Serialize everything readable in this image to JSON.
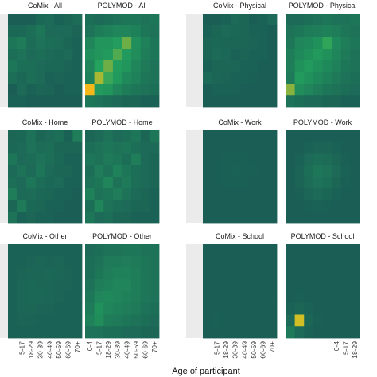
{
  "figure": {
    "xlabel": "Age of participant"
  },
  "chart_data": {
    "type": "heatmap",
    "xlabel": "Age of participant",
    "age_groups": [
      "0-4",
      "5-17",
      "18-29",
      "30-39",
      "40-49",
      "50-59",
      "60-69",
      "70+"
    ],
    "color_scale": {
      "low": "#1b5e55",
      "mid": "#23a35e",
      "high": "#e8c31f",
      "peak": "#f5b81b"
    },
    "panels": [
      {
        "title": "CoMix - All",
        "x_ticks": [],
        "values": [
          [
            0.1,
            0.1,
            0.06,
            0.15,
            0.16,
            0.12,
            0.14,
            0.17
          ],
          [
            0.15,
            0.15,
            0.18,
            0.22,
            0.16,
            0.16,
            0.16,
            0.13
          ],
          [
            0.22,
            0.25,
            0.17,
            0.2,
            0.18,
            0.17,
            0.14,
            0.12
          ],
          [
            0.18,
            0.2,
            0.16,
            0.18,
            0.16,
            0.15,
            0.16,
            0.12
          ],
          [
            0.22,
            0.18,
            0.18,
            0.16,
            0.15,
            0.15,
            0.13,
            0.12
          ],
          [
            0.18,
            0.15,
            0.18,
            0.16,
            0.12,
            0.13,
            0.12,
            0.12
          ],
          [
            0.1,
            0.16,
            0.12,
            0.14,
            0.13,
            0.1,
            0.12,
            0.12
          ],
          [
            0.12,
            0.12,
            0.1,
            0.1,
            0.08,
            0.08,
            0.08,
            0.1
          ]
        ]
      },
      {
        "title": "POLYMOD - All",
        "x_ticks": [],
        "values": [
          [
            0.18,
            0.16,
            0.18,
            0.2,
            0.22,
            0.22,
            0.2,
            0.22
          ],
          [
            0.2,
            0.25,
            0.28,
            0.3,
            0.3,
            0.28,
            0.22,
            0.2
          ],
          [
            0.3,
            0.38,
            0.38,
            0.42,
            0.62,
            0.35,
            0.28,
            0.22
          ],
          [
            0.35,
            0.38,
            0.4,
            0.55,
            0.4,
            0.34,
            0.26,
            0.22
          ],
          [
            0.3,
            0.45,
            0.62,
            0.42,
            0.38,
            0.3,
            0.24,
            0.2
          ],
          [
            0.28,
            0.75,
            0.5,
            0.4,
            0.32,
            0.28,
            0.22,
            0.2
          ],
          [
            1.0,
            0.4,
            0.38,
            0.3,
            0.25,
            0.22,
            0.2,
            0.18
          ],
          [
            0.22,
            0.2,
            0.18,
            0.16,
            0.14,
            0.14,
            0.12,
            0.12
          ]
        ]
      },
      {
        "title": "CoMix - Physical",
        "x_ticks": [],
        "values": [
          [
            0.1,
            0.1,
            0.12,
            0.16,
            0.14,
            0.1,
            0.12,
            0.16
          ],
          [
            0.12,
            0.14,
            0.16,
            0.15,
            0.14,
            0.12,
            0.12,
            0.1
          ],
          [
            0.14,
            0.15,
            0.14,
            0.14,
            0.14,
            0.13,
            0.12,
            0.1
          ],
          [
            0.14,
            0.16,
            0.15,
            0.12,
            0.13,
            0.12,
            0.12,
            0.1
          ],
          [
            0.12,
            0.14,
            0.14,
            0.14,
            0.12,
            0.12,
            0.1,
            0.1
          ],
          [
            0.16,
            0.14,
            0.13,
            0.12,
            0.12,
            0.11,
            0.1,
            0.1
          ],
          [
            0.1,
            0.12,
            0.12,
            0.12,
            0.1,
            0.1,
            0.1,
            0.1
          ],
          [
            0.1,
            0.1,
            0.1,
            0.1,
            0.1,
            0.1,
            0.08,
            0.1
          ]
        ]
      },
      {
        "title": "POLYMOD - Physical",
        "x_ticks": [],
        "values": [
          [
            0.16,
            0.16,
            0.18,
            0.2,
            0.22,
            0.2,
            0.2,
            0.22
          ],
          [
            0.2,
            0.22,
            0.25,
            0.26,
            0.28,
            0.26,
            0.22,
            0.2
          ],
          [
            0.22,
            0.3,
            0.32,
            0.36,
            0.48,
            0.32,
            0.26,
            0.22
          ],
          [
            0.26,
            0.32,
            0.36,
            0.4,
            0.36,
            0.3,
            0.24,
            0.2
          ],
          [
            0.26,
            0.36,
            0.4,
            0.36,
            0.32,
            0.28,
            0.22,
            0.2
          ],
          [
            0.24,
            0.4,
            0.36,
            0.32,
            0.28,
            0.24,
            0.2,
            0.18
          ],
          [
            0.68,
            0.34,
            0.3,
            0.26,
            0.22,
            0.2,
            0.18,
            0.16
          ],
          [
            0.2,
            0.18,
            0.16,
            0.16,
            0.14,
            0.14,
            0.12,
            0.12
          ]
        ]
      },
      {
        "title": "CoMix - Home",
        "x_ticks": [],
        "values": [
          [
            0.14,
            0.15,
            0.2,
            0.14,
            0.16,
            0.18,
            0.12,
            0.26
          ],
          [
            0.15,
            0.16,
            0.2,
            0.17,
            0.18,
            0.14,
            0.14,
            0.14
          ],
          [
            0.22,
            0.16,
            0.17,
            0.2,
            0.18,
            0.15,
            0.12,
            0.12
          ],
          [
            0.16,
            0.2,
            0.16,
            0.22,
            0.16,
            0.14,
            0.14,
            0.12
          ],
          [
            0.18,
            0.16,
            0.22,
            0.17,
            0.15,
            0.16,
            0.12,
            0.12
          ],
          [
            0.26,
            0.16,
            0.17,
            0.15,
            0.14,
            0.12,
            0.12,
            0.1
          ],
          [
            0.14,
            0.24,
            0.15,
            0.14,
            0.12,
            0.12,
            0.1,
            0.1
          ],
          [
            0.2,
            0.12,
            0.14,
            0.12,
            0.12,
            0.1,
            0.1,
            0.1
          ]
        ]
      },
      {
        "title": "POLYMOD - Home",
        "x_ticks": [],
        "values": [
          [
            0.14,
            0.16,
            0.2,
            0.16,
            0.18,
            0.22,
            0.14,
            0.22
          ],
          [
            0.18,
            0.2,
            0.22,
            0.2,
            0.22,
            0.18,
            0.16,
            0.16
          ],
          [
            0.22,
            0.2,
            0.24,
            0.22,
            0.18,
            0.26,
            0.16,
            0.14
          ],
          [
            0.18,
            0.26,
            0.2,
            0.28,
            0.22,
            0.18,
            0.16,
            0.14
          ],
          [
            0.2,
            0.22,
            0.3,
            0.2,
            0.24,
            0.18,
            0.16,
            0.14
          ],
          [
            0.28,
            0.2,
            0.22,
            0.26,
            0.2,
            0.16,
            0.14,
            0.12
          ],
          [
            0.18,
            0.3,
            0.2,
            0.18,
            0.16,
            0.14,
            0.14,
            0.12
          ],
          [
            0.22,
            0.16,
            0.18,
            0.14,
            0.14,
            0.12,
            0.12,
            0.12
          ]
        ]
      },
      {
        "title": "CoMix - Work",
        "x_ticks": [],
        "values": [
          [
            0.1,
            0.1,
            0.1,
            0.1,
            0.1,
            0.1,
            0.1,
            0.1
          ],
          [
            0.1,
            0.1,
            0.1,
            0.1,
            0.1,
            0.1,
            0.1,
            0.1
          ],
          [
            0.1,
            0.1,
            0.11,
            0.11,
            0.11,
            0.1,
            0.1,
            0.1
          ],
          [
            0.1,
            0.1,
            0.11,
            0.12,
            0.11,
            0.11,
            0.1,
            0.1
          ],
          [
            0.1,
            0.1,
            0.11,
            0.11,
            0.11,
            0.1,
            0.1,
            0.1
          ],
          [
            0.1,
            0.1,
            0.1,
            0.1,
            0.1,
            0.1,
            0.1,
            0.1
          ],
          [
            0.1,
            0.1,
            0.1,
            0.1,
            0.1,
            0.1,
            0.1,
            0.1
          ],
          [
            0.1,
            0.1,
            0.1,
            0.1,
            0.1,
            0.1,
            0.1,
            0.1
          ]
        ]
      },
      {
        "title": "POLYMOD - Work",
        "x_ticks": [],
        "values": [
          [
            0.1,
            0.1,
            0.1,
            0.1,
            0.1,
            0.1,
            0.1,
            0.1
          ],
          [
            0.1,
            0.1,
            0.12,
            0.13,
            0.13,
            0.12,
            0.1,
            0.1
          ],
          [
            0.1,
            0.12,
            0.16,
            0.18,
            0.17,
            0.14,
            0.11,
            0.1
          ],
          [
            0.1,
            0.13,
            0.18,
            0.22,
            0.2,
            0.16,
            0.12,
            0.1
          ],
          [
            0.1,
            0.13,
            0.17,
            0.2,
            0.18,
            0.14,
            0.11,
            0.1
          ],
          [
            0.1,
            0.11,
            0.14,
            0.16,
            0.14,
            0.12,
            0.1,
            0.1
          ],
          [
            0.1,
            0.1,
            0.11,
            0.12,
            0.11,
            0.1,
            0.1,
            0.1
          ],
          [
            0.1,
            0.1,
            0.1,
            0.1,
            0.1,
            0.1,
            0.1,
            0.1
          ]
        ]
      },
      {
        "title": "CoMix - Other",
        "x_ticks": [
          "5-17",
          "18-29",
          "30-39",
          "40-49",
          "50-59",
          "60-69",
          "70+"
        ],
        "values": [
          [
            0.12,
            0.12,
            0.12,
            0.12,
            0.12,
            0.12,
            0.12,
            0.12
          ],
          [
            0.12,
            0.12,
            0.13,
            0.14,
            0.13,
            0.14,
            0.12,
            0.12
          ],
          [
            0.12,
            0.13,
            0.14,
            0.14,
            0.15,
            0.14,
            0.13,
            0.12
          ],
          [
            0.12,
            0.14,
            0.15,
            0.14,
            0.14,
            0.13,
            0.13,
            0.12
          ],
          [
            0.12,
            0.14,
            0.15,
            0.15,
            0.14,
            0.13,
            0.12,
            0.12
          ],
          [
            0.12,
            0.14,
            0.14,
            0.13,
            0.13,
            0.12,
            0.12,
            0.12
          ],
          [
            0.12,
            0.13,
            0.13,
            0.12,
            0.12,
            0.12,
            0.12,
            0.12
          ],
          [
            0.12,
            0.12,
            0.12,
            0.12,
            0.12,
            0.12,
            0.12,
            0.12
          ]
        ]
      },
      {
        "title": "POLYMOD - Other",
        "x_ticks": [
          "0-4",
          "5-17",
          "18-29",
          "30-39",
          "40-49",
          "50-59",
          "60-69",
          "70+"
        ],
        "values": [
          [
            0.16,
            0.18,
            0.2,
            0.2,
            0.22,
            0.22,
            0.2,
            0.2
          ],
          [
            0.18,
            0.2,
            0.24,
            0.24,
            0.26,
            0.24,
            0.22,
            0.2
          ],
          [
            0.18,
            0.22,
            0.26,
            0.28,
            0.28,
            0.26,
            0.22,
            0.2
          ],
          [
            0.2,
            0.26,
            0.28,
            0.3,
            0.3,
            0.26,
            0.22,
            0.2
          ],
          [
            0.22,
            0.3,
            0.32,
            0.3,
            0.28,
            0.26,
            0.22,
            0.2
          ],
          [
            0.24,
            0.36,
            0.3,
            0.28,
            0.26,
            0.24,
            0.2,
            0.18
          ],
          [
            0.28,
            0.34,
            0.26,
            0.24,
            0.22,
            0.2,
            0.18,
            0.16
          ],
          [
            0.2,
            0.2,
            0.18,
            0.18,
            0.16,
            0.16,
            0.14,
            0.14
          ]
        ]
      },
      {
        "title": "CoMix - School",
        "x_ticks": [
          "5-17",
          "18-29",
          "30-39",
          "40-49",
          "50-59",
          "60-69",
          "70+"
        ],
        "values": [
          [
            0.1,
            0.1,
            0.1,
            0.1,
            0.1,
            0.1,
            0.1,
            0.1
          ],
          [
            0.1,
            0.1,
            0.1,
            0.1,
            0.1,
            0.1,
            0.1,
            0.1
          ],
          [
            0.1,
            0.1,
            0.1,
            0.1,
            0.1,
            0.1,
            0.1,
            0.1
          ],
          [
            0.1,
            0.1,
            0.1,
            0.1,
            0.1,
            0.1,
            0.1,
            0.1
          ],
          [
            0.1,
            0.1,
            0.1,
            0.1,
            0.1,
            0.1,
            0.1,
            0.1
          ],
          [
            0.1,
            0.1,
            0.1,
            0.1,
            0.1,
            0.1,
            0.1,
            0.1
          ],
          [
            0.1,
            0.11,
            0.1,
            0.1,
            0.1,
            0.1,
            0.1,
            0.1
          ],
          [
            0.1,
            0.1,
            0.1,
            0.1,
            0.1,
            0.1,
            0.1,
            0.1
          ]
        ]
      },
      {
        "title": "POLYMOD - School",
        "x_ticks": [
          "0-4",
          "5-17",
          "18-29"
        ],
        "values": [
          [
            0.1,
            0.1,
            0.1,
            0.1,
            0.1,
            0.1,
            0.1,
            0.1
          ],
          [
            0.1,
            0.1,
            0.1,
            0.1,
            0.1,
            0.1,
            0.1,
            0.1
          ],
          [
            0.1,
            0.1,
            0.1,
            0.1,
            0.1,
            0.1,
            0.1,
            0.1
          ],
          [
            0.1,
            0.1,
            0.1,
            0.1,
            0.1,
            0.1,
            0.1,
            0.1
          ],
          [
            0.1,
            0.11,
            0.1,
            0.1,
            0.1,
            0.1,
            0.1,
            0.1
          ],
          [
            0.12,
            0.14,
            0.12,
            0.1,
            0.1,
            0.1,
            0.1,
            0.1
          ],
          [
            0.16,
            0.85,
            0.14,
            0.11,
            0.1,
            0.1,
            0.1,
            0.1
          ],
          [
            0.24,
            0.16,
            0.12,
            0.1,
            0.1,
            0.1,
            0.1,
            0.1
          ]
        ]
      }
    ]
  }
}
